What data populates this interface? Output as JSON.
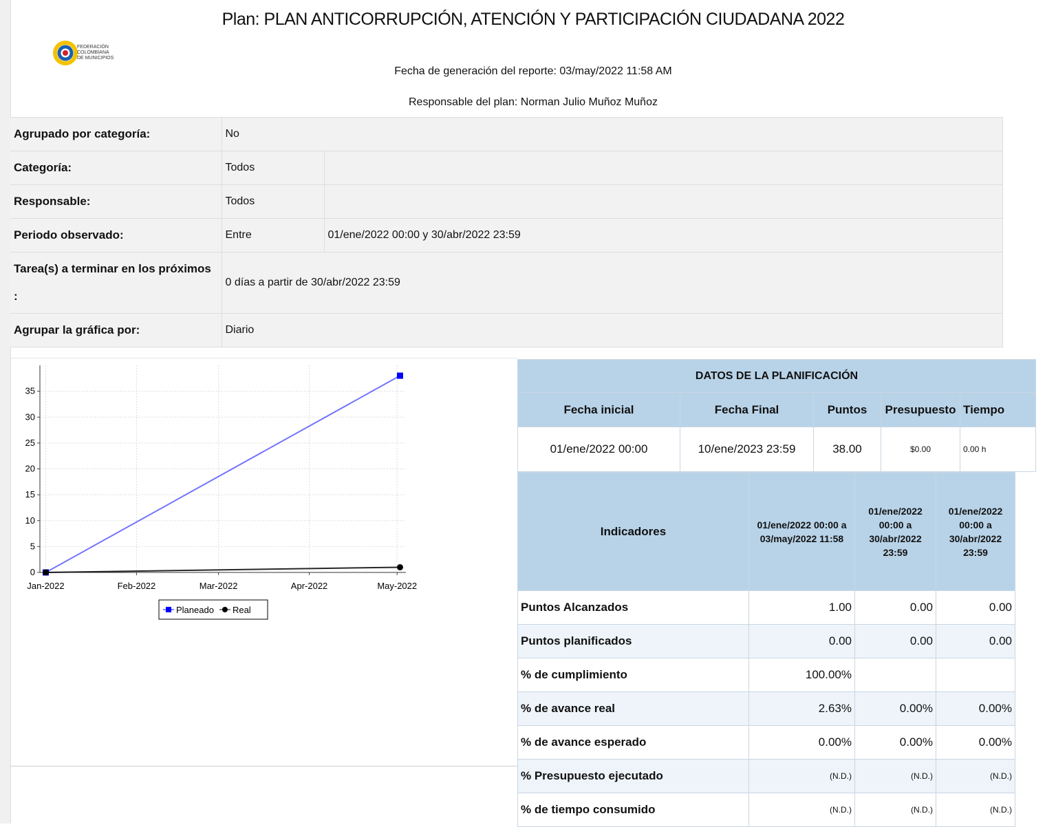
{
  "header": {
    "title": "Plan:  PLAN ANTICORRUPCIÓN, ATENCIÓN Y PARTICIPACIÓN CIUDADANA 2022",
    "logo_text": [
      "FEDERACIÓN",
      "COLOMBIANA",
      "DE MUNICIPIOS"
    ],
    "report_date": "Fecha de generación del reporte:  03/may/2022 11:58 AM",
    "responsible": "Responsable del plan: Norman Julio Muñoz Muñoz"
  },
  "filters": {
    "rows": [
      [
        "Agrupado por categoría:",
        "No"
      ],
      [
        "Categoría:",
        "Todos"
      ],
      [
        "Responsable:",
        "Todos"
      ],
      [
        "Periodo observado:",
        "Entre",
        "01/ene/2022 00:00 y 30/abr/2022 23:59"
      ],
      [
        "Tarea(s) a terminar en los próximos :",
        "0 días a partir de 30/abr/2022 23:59"
      ],
      [
        "Agrupar la gráfica por:",
        "Diario"
      ]
    ]
  },
  "chart_data": {
    "type": "line",
    "x": [
      0,
      121
    ],
    "xlim": [
      -2,
      123
    ],
    "xticks": [
      {
        "value": 0,
        "label": "Jan-2022"
      },
      {
        "value": 31,
        "label": "Feb-2022"
      },
      {
        "value": 59,
        "label": "Mar-2022"
      },
      {
        "value": 90,
        "label": "Apr-2022"
      },
      {
        "value": 120,
        "label": "May-2022"
      }
    ],
    "ylim": [
      0,
      40
    ],
    "yticks": [
      0,
      5,
      10,
      15,
      20,
      25,
      30,
      35
    ],
    "grid": true,
    "legend": "bottom",
    "series": [
      {
        "name": "Planeado",
        "color": "#0000ff",
        "marker": "square",
        "values": [
          0,
          38
        ]
      },
      {
        "name": "Real",
        "color": "#000000",
        "marker": "circle",
        "values": [
          0,
          1
        ]
      }
    ]
  },
  "planning": {
    "title": "DATOS DE LA PLANIFICACIÓN",
    "headers": [
      "Fecha inicial",
      "Fecha Final",
      "Puntos",
      "Presupuesto",
      "Tiempo"
    ],
    "values": [
      "01/ene/2022 00:00",
      "10/ene/2023 23:59",
      "38.00",
      "$0.00",
      "0.00 h"
    ],
    "indicators_header": "Indicadores",
    "periods": [
      "01/ene/2022 00:00 a 03/may/2022 11:58",
      "01/ene/2022 00:00 a 30/abr/2022 23:59",
      "01/ene/2022 00:00 a 30/abr/2022 23:59"
    ],
    "rows": [
      {
        "label": "Puntos Alcanzados",
        "values": [
          "1.00",
          "0.00",
          "0.00"
        ]
      },
      {
        "label": "Puntos planificados",
        "values": [
          "0.00",
          "0.00",
          "0.00"
        ]
      },
      {
        "label": "% de cumplimiento",
        "values": [
          "100.00%"
        ]
      },
      {
        "label": "% de avance real",
        "values": [
          "2.63%",
          "0.00%",
          "0.00%"
        ]
      },
      {
        "label": "% de avance esperado",
        "values": [
          "0.00%",
          "0.00%",
          "0.00%"
        ]
      },
      {
        "label": "% Presupuesto ejecutado",
        "values": [
          "(N.D.)",
          "(N.D.)",
          "(N.D.)"
        ]
      },
      {
        "label": "% de tiempo consumido",
        "values": [
          "(N.D.)",
          "(N.D.)",
          "(N.D.)"
        ]
      }
    ]
  }
}
